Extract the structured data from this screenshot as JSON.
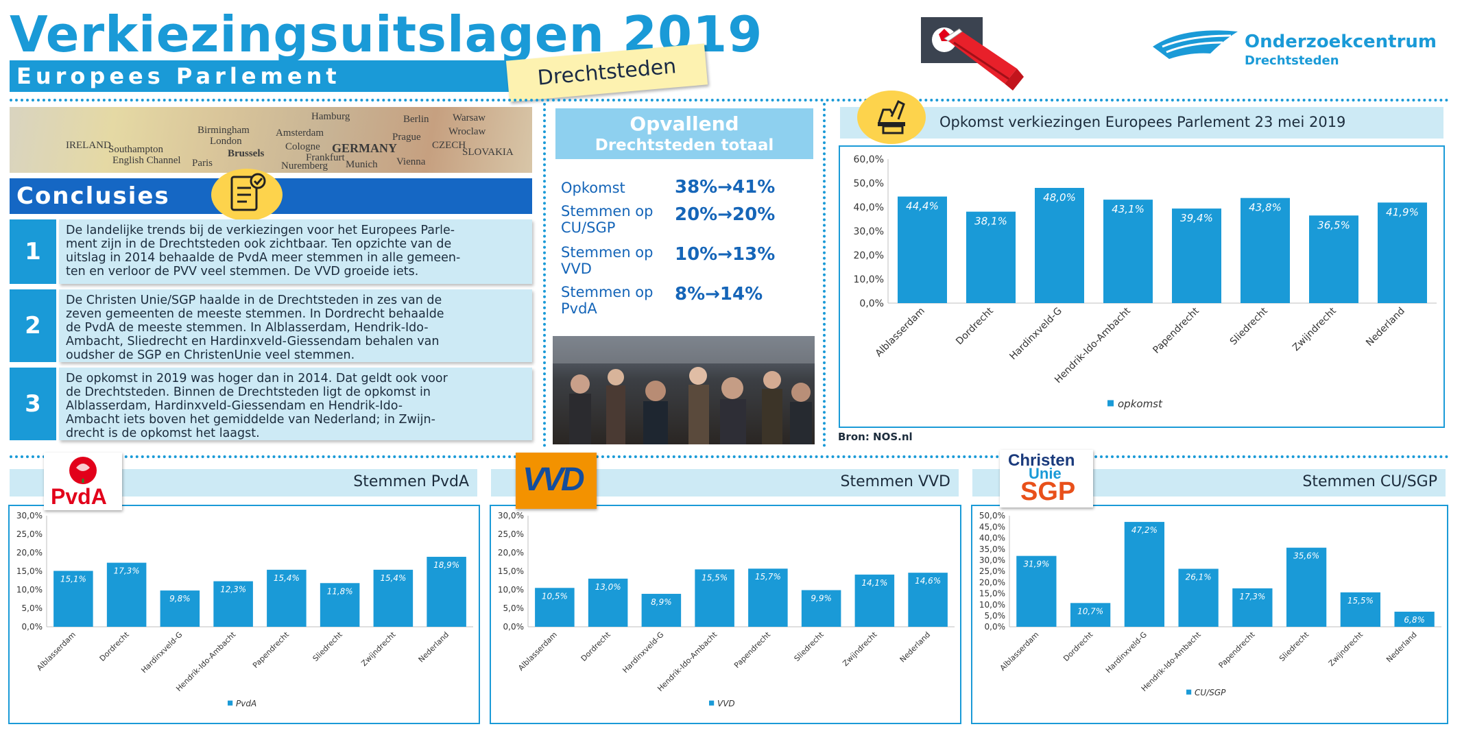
{
  "header": {
    "title": "Verkiezingsuitslagen 2019",
    "subtitle": "Europees Parlement",
    "region": "Drechtsteden",
    "logo_line1": "Onderzoekcentrum",
    "logo_line2": "Drechtsteden"
  },
  "map_labels": [
    "IRELAND",
    "Birmingham",
    "Hamburg",
    "Berlin",
    "Warsaw",
    "London",
    "Amsterdam",
    "Wroclaw",
    "Southampton",
    "Cologne",
    "GERMANY",
    "Prague",
    "English Channel",
    "Brussels",
    "CZECH",
    "SLOVAKIA",
    "Paris",
    "Frankfurt",
    "Munich",
    "Vienna",
    "Nuremberg"
  ],
  "conclusions": {
    "title": "Conclusies",
    "items": [
      {
        "number": "1",
        "lines": [
          "De landelijke trends bij de verkiezingen voor het Europees Parle-",
          "ment zijn in de Drechtsteden ook zichtbaar. Ten opzichte van de",
          "uitslag in 2014 behaalde de PvdA meer stemmen in alle gemeen-",
          "ten en verloor de PVV veel stemmen. De VVD groeide iets."
        ]
      },
      {
        "number": "2",
        "lines": [
          "De Christen Unie/SGP haalde in de Drechtsteden in zes van de",
          "zeven gemeenten de meeste stemmen. In Dordrecht behaalde",
          "de PvdA de meeste stemmen. In Alblasserdam, Hendrik-Ido-",
          "Ambacht, Sliedrecht en Hardinxveld-Giessendam behalen van",
          "oudsher de SGP en ChristenUnie veel stemmen."
        ]
      },
      {
        "number": "3",
        "lines": [
          "De opkomst in 2019 was hoger dan in 2014. Dat geldt ook voor",
          "de Drechtsteden. Binnen de Drechtsteden ligt de opkomst in",
          "Alblasserdam, Hardinxveld-Giessendam en Hendrik-Ido-",
          "Ambacht iets boven het gemiddelde van Nederland; in Zwijn-",
          "drecht is de opkomst het laagst."
        ]
      }
    ]
  },
  "opvallend": {
    "title": "Opvallend",
    "subtitle": "Drechtsteden totaal",
    "rows": [
      {
        "label_lines": [
          "Opkomst"
        ],
        "value": "38%→41%"
      },
      {
        "label_lines": [
          "Stemmen op",
          "CU/SGP"
        ],
        "value": "20%→20%"
      },
      {
        "label_lines": [
          "Stemmen op",
          "VVD"
        ],
        "value": "10%→13%"
      },
      {
        "label_lines": [
          "Stemmen op",
          "PvdA"
        ],
        "value": "8%→14%"
      }
    ]
  },
  "source": "Bron: NOS.nl",
  "logos": {
    "pvda_text": "PvdA",
    "vvd_text": "VVD",
    "cu_text_1": "Christen",
    "cu_text_2": "Unie",
    "sgp_text": "SGP"
  },
  "colors": {
    "accent": "#1a9ad7",
    "bar": "#1a9ad7",
    "header_panel": "#cdeaf5",
    "conclusion_bar": "#1567c4",
    "highlight_text": "#1565b8",
    "note_yellow": "#fdf2b0",
    "icon_yellow": "#fdd34c",
    "pvda_red": "#e2001a",
    "vvd_orange": "#f39200",
    "vvd_blue": "#144d9c"
  },
  "chart_data": [
    {
      "id": "opkomst",
      "type": "bar",
      "title": "Opkomst verkiezingen Europees Parlement 23 mei 2019",
      "categories": [
        "Alblasserdam",
        "Dordrecht",
        "Hardinxveld-G",
        "Hendrik-Ido-Ambacht",
        "Papendrecht",
        "Sliedrecht",
        "Zwijndrecht",
        "Nederland"
      ],
      "series": [
        {
          "name": "opkomst",
          "values": [
            44.4,
            38.1,
            48.0,
            43.1,
            39.4,
            43.8,
            36.5,
            41.9
          ]
        }
      ],
      "value_labels": [
        "44,4%",
        "38,1%",
        "48,0%",
        "43,1%",
        "39,4%",
        "43,8%",
        "36,5%",
        "41,9%"
      ],
      "ylim": [
        0,
        60
      ],
      "yticks": [
        "0,0%",
        "10,0%",
        "20,0%",
        "30,0%",
        "40,0%",
        "50,0%",
        "60,0%"
      ],
      "legend": "bottom-left",
      "grid": false
    },
    {
      "id": "pvda",
      "type": "bar",
      "title": "Stemmen PvdA",
      "categories": [
        "Alblasserdam",
        "Dordrecht",
        "Hardinxveld-G",
        "Hendrik-Ido-Ambacht",
        "Papendrecht",
        "Sliedrecht",
        "Zwijndrecht",
        "Nederland"
      ],
      "series": [
        {
          "name": "PvdA",
          "values": [
            15.1,
            17.3,
            9.8,
            12.3,
            15.4,
            11.8,
            15.4,
            18.9
          ]
        }
      ],
      "value_labels": [
        "15,1%",
        "17,3%",
        "9,8%",
        "12,3%",
        "15,4%",
        "11,8%",
        "15,4%",
        "18,9%"
      ],
      "ylim": [
        0,
        30
      ],
      "yticks": [
        "0,0%",
        "5,0%",
        "10,0%",
        "15,0%",
        "20,0%",
        "25,0%",
        "30,0%"
      ],
      "legend": "bottom-center",
      "grid": false
    },
    {
      "id": "vvd",
      "type": "bar",
      "title": "Stemmen VVD",
      "categories": [
        "Alblasserdam",
        "Dordrecht",
        "Hardinxveld-G",
        "Hendrik-Ido-Ambacht",
        "Papendrecht",
        "Sliedrecht",
        "Zwijndrecht",
        "Nederland"
      ],
      "series": [
        {
          "name": "VVD",
          "values": [
            10.5,
            13.0,
            8.9,
            15.5,
            15.7,
            9.9,
            14.1,
            14.6
          ]
        }
      ],
      "value_labels": [
        "10,5%",
        "13,0%",
        "8,9%",
        "15,5%",
        "15,7%",
        "9,9%",
        "14,1%",
        "14,6%"
      ],
      "ylim": [
        0,
        30
      ],
      "yticks": [
        "0,0%",
        "5,0%",
        "10,0%",
        "15,0%",
        "20,0%",
        "25,0%",
        "30,0%"
      ],
      "legend": "bottom-center",
      "grid": false
    },
    {
      "id": "cusgp",
      "type": "bar",
      "title": "Stemmen CU/SGP",
      "categories": [
        "Alblasserdam",
        "Dordrecht",
        "Hardinxveld-G",
        "Hendrik-Ido-Ambacht",
        "Papendrecht",
        "Sliedrecht",
        "Zwijndrecht",
        "Nederland"
      ],
      "series": [
        {
          "name": "CU/SGP",
          "values": [
            31.9,
            10.7,
            47.2,
            26.1,
            17.3,
            35.6,
            15.5,
            6.8
          ]
        }
      ],
      "value_labels": [
        "31,9%",
        "10,7%",
        "47,2%",
        "26,1%",
        "17,3%",
        "35,6%",
        "15,5%",
        "6,8%"
      ],
      "ylim": [
        0,
        50
      ],
      "yticks": [
        "0,0%",
        "5,0%",
        "10,0%",
        "15,0%",
        "20,0%",
        "25,0%",
        "30,0%",
        "35,0%",
        "40,0%",
        "45,0%",
        "50,0%"
      ],
      "legend": "bottom-center",
      "grid": false
    }
  ]
}
